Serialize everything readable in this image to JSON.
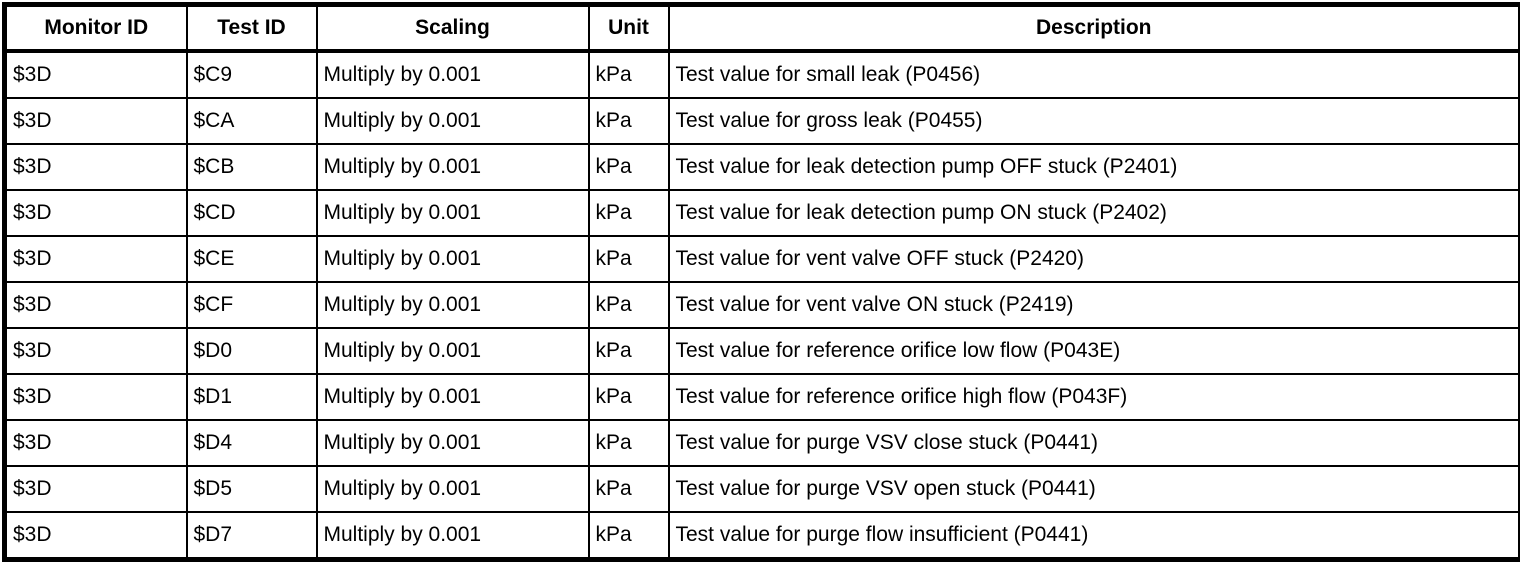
{
  "table": {
    "headers": [
      "Monitor ID",
      "Test ID",
      "Scaling",
      "Unit",
      "Description"
    ],
    "rows": [
      [
        "$3D",
        "$C9",
        "Multiply by 0.001",
        "kPa",
        "Test value for small leak (P0456)"
      ],
      [
        "$3D",
        "$CA",
        "Multiply by 0.001",
        "kPa",
        "Test value for gross leak (P0455)"
      ],
      [
        "$3D",
        "$CB",
        "Multiply by 0.001",
        "kPa",
        "Test value for leak detection pump OFF stuck (P2401)"
      ],
      [
        "$3D",
        "$CD",
        "Multiply by 0.001",
        "kPa",
        "Test value for leak detection pump ON stuck (P2402)"
      ],
      [
        "$3D",
        "$CE",
        "Multiply by 0.001",
        "kPa",
        "Test value for vent valve OFF stuck (P2420)"
      ],
      [
        "$3D",
        "$CF",
        "Multiply by 0.001",
        "kPa",
        "Test value for vent valve ON stuck (P2419)"
      ],
      [
        "$3D",
        "$D0",
        "Multiply by 0.001",
        "kPa",
        "Test value for reference orifice low flow (P043E)"
      ],
      [
        "$3D",
        "$D1",
        "Multiply by 0.001",
        "kPa",
        "Test value for reference orifice high flow (P043F)"
      ],
      [
        "$3D",
        "$D4",
        "Multiply by 0.001",
        "kPa",
        "Test value for purge VSV close stuck (P0441)"
      ],
      [
        "$3D",
        "$D5",
        "Multiply by 0.001",
        "kPa",
        "Test value for purge VSV open stuck (P0441)"
      ],
      [
        "$3D",
        "$D7",
        "Multiply by 0.001",
        "kPa",
        "Test value for purge flow insufficient (P0441)"
      ]
    ]
  },
  "colors": {
    "border": "#000000",
    "background": "#ffffff",
    "text": "#000000"
  }
}
